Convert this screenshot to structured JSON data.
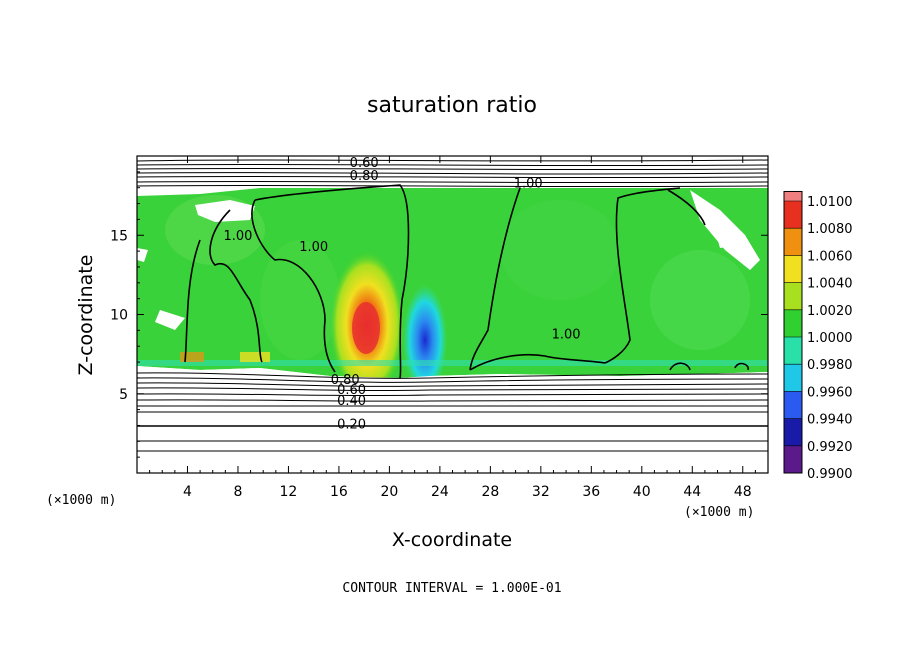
{
  "chart_data": {
    "type": "heatmap",
    "title": "saturation ratio",
    "xlabel": "X-coordinate",
    "ylabel": "Z-coordinate",
    "x_units": "(×1000 m)",
    "z_units": "(×1000 m)",
    "xlim": [
      0,
      50
    ],
    "ylim": [
      0,
      20
    ],
    "x_ticks": [
      4,
      8,
      12,
      16,
      20,
      24,
      28,
      32,
      36,
      40,
      44,
      48
    ],
    "y_ticks": [
      5,
      10,
      15
    ],
    "colorbar": {
      "ticks": [
        "0.9900",
        "0.9920",
        "0.9940",
        "0.9960",
        "0.9980",
        "1.0000",
        "1.0020",
        "1.0040",
        "1.0060",
        "1.0080",
        "1.0100"
      ],
      "colors": [
        "#5a1a8a",
        "#1a1aa8",
        "#2a5af0",
        "#20c8e8",
        "#28e0a8",
        "#30d030",
        "#a8e020",
        "#f0e020",
        "#f09010",
        "#e83020",
        "#f08080"
      ]
    },
    "contour_labels": [
      {
        "text": "0.60",
        "x": 18.0,
        "y": 19.3
      },
      {
        "text": "0.80",
        "x": 18.0,
        "y": 18.5
      },
      {
        "text": "1.00",
        "x": 31.0,
        "y": 18.0
      },
      {
        "text": "1.00",
        "x": 8.0,
        "y": 14.7
      },
      {
        "text": "1.00",
        "x": 14.0,
        "y": 14.0
      },
      {
        "text": "1.00",
        "x": 34.0,
        "y": 8.5
      },
      {
        "text": "0.80",
        "x": 16.5,
        "y": 5.6
      },
      {
        "text": "0.60",
        "x": 17.0,
        "y": 5.0
      },
      {
        "text": "0.40",
        "x": 17.0,
        "y": 4.3
      },
      {
        "text": "0.20",
        "x": 17.0,
        "y": 2.8
      }
    ],
    "footer": "CONTOUR INTERVAL = 1.000E-01",
    "grid": false,
    "legend": "colorbar-right"
  }
}
